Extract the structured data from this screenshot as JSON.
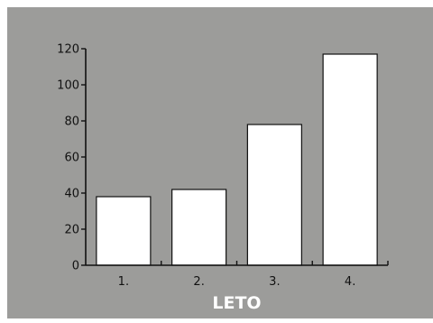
{
  "chart_data": {
    "type": "bar",
    "categories": [
      "1.",
      "2.",
      "3.",
      "4."
    ],
    "values": [
      38,
      42,
      78,
      117
    ],
    "title": "",
    "xlabel": "LETO",
    "ylabel": "",
    "ylim": [
      0,
      120
    ],
    "yticks": [
      "0",
      "20",
      "40",
      "60",
      "80",
      "100",
      "120"
    ],
    "grid": false,
    "colors": {
      "background": "#9c9c9a",
      "bar_fill": "#ffffff",
      "bar_stroke": "#111111",
      "axis": "#111111",
      "xlabel": "#ffffff"
    }
  }
}
